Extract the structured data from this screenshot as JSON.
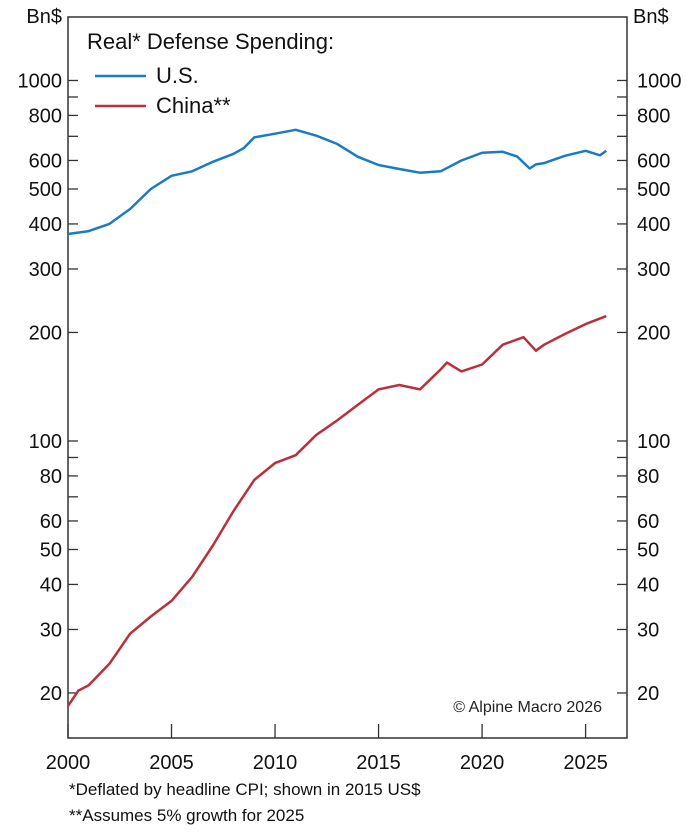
{
  "chart_data": {
    "type": "line",
    "title": "Real* Defense Spending:",
    "ylabel_left": "Bn$",
    "ylabel_right": "Bn$",
    "yscale": "log",
    "ylim": [
      15,
      1500
    ],
    "xlim": [
      2000,
      2027
    ],
    "y_ticks_labeled": [
      20,
      30,
      40,
      50,
      60,
      80,
      100,
      200,
      300,
      400,
      500,
      600,
      800,
      1000
    ],
    "y_ticks_minor": [
      70,
      90,
      700,
      900
    ],
    "x_ticks": [
      2000,
      2005,
      2010,
      2015,
      2020,
      2025
    ],
    "grid": false,
    "legend_position": "top-left",
    "colors": {
      "us": "#1b7bc2",
      "china": "#b9303b"
    },
    "series": [
      {
        "name": "U.S.",
        "key": "us",
        "x": [
          2000,
          2001,
          2002,
          2003,
          2004,
          2005,
          2006,
          2007,
          2008,
          2008.5,
          2009,
          2010,
          2011,
          2012,
          2013,
          2014,
          2015,
          2016,
          2017,
          2018,
          2019,
          2020,
          2021,
          2021.7,
          2022.3,
          2022.6,
          2023,
          2024,
          2025,
          2025.7,
          2026
        ],
        "values": [
          375,
          382,
          400,
          440,
          500,
          544,
          560,
          595,
          626,
          650,
          695,
          712,
          730,
          703,
          667,
          614,
          583,
          568,
          555,
          560,
          600,
          630,
          634,
          615,
          570,
          585,
          590,
          618,
          638,
          620,
          638
        ]
      },
      {
        "name": "China**",
        "key": "china",
        "x": [
          2000,
          2000.5,
          2001,
          2002,
          2003,
          2004,
          2005,
          2006,
          2007,
          2008,
          2009,
          2010,
          2011,
          2012,
          2013,
          2014,
          2015,
          2016,
          2017,
          2018,
          2018.3,
          2019,
          2020,
          2021,
          2022,
          2022.6,
          2023,
          2024,
          2025,
          2026
        ],
        "values": [
          18.4,
          20.3,
          21,
          24.1,
          29.2,
          32.6,
          36,
          42,
          51.3,
          64,
          78,
          86.8,
          91.3,
          104,
          114,
          126,
          139,
          143,
          139,
          158,
          165,
          156,
          163,
          185,
          194,
          178,
          185,
          198,
          211,
          222
        ]
      }
    ],
    "annotation": "© Alpine Macro 2026"
  },
  "footnotes": [
    "*Deflated by headline CPI; shown in 2015 US$",
    "**Assumes 5% growth for 2025"
  ]
}
